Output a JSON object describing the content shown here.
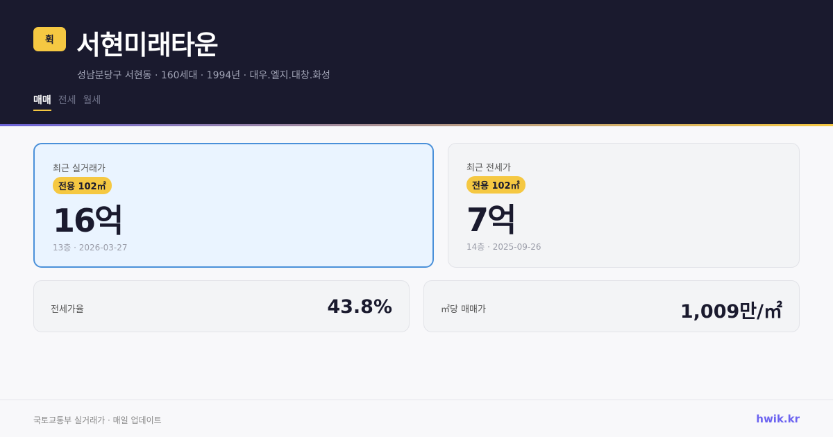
{
  "header": {
    "logo": "휙",
    "title": "서현미래타운",
    "subtitle": "성남분당구 서현동 · 160세대 · 1994년 · 대우.엘지.대창.화성",
    "tabs": [
      {
        "label": "매매",
        "active": true
      },
      {
        "label": "전세"
      },
      {
        "label": "월세"
      }
    ]
  },
  "cards": {
    "sale": {
      "label": "최근 실거래가",
      "badge": "전용 102㎡",
      "price": "16억",
      "meta": "13층 · 2026-03-27"
    },
    "jeonse": {
      "label": "최근 전세가",
      "badge": "전용 102㎡",
      "price": "7억",
      "meta": "14층 · 2025-09-26"
    },
    "ratio": {
      "label": "전세가율",
      "value": "43.8%"
    },
    "per_area": {
      "label": "㎡당 매매가",
      "value": "1,009만/㎡"
    }
  },
  "footer": {
    "source": "국토교통부 실거래가 · 매일 업데이트",
    "brand": "hwik.kr"
  },
  "colors": {
    "header_bg": "#1a1a2e",
    "accent": "#f5c842",
    "highlight": "#4a90d9",
    "brand": "#6c63f0"
  }
}
